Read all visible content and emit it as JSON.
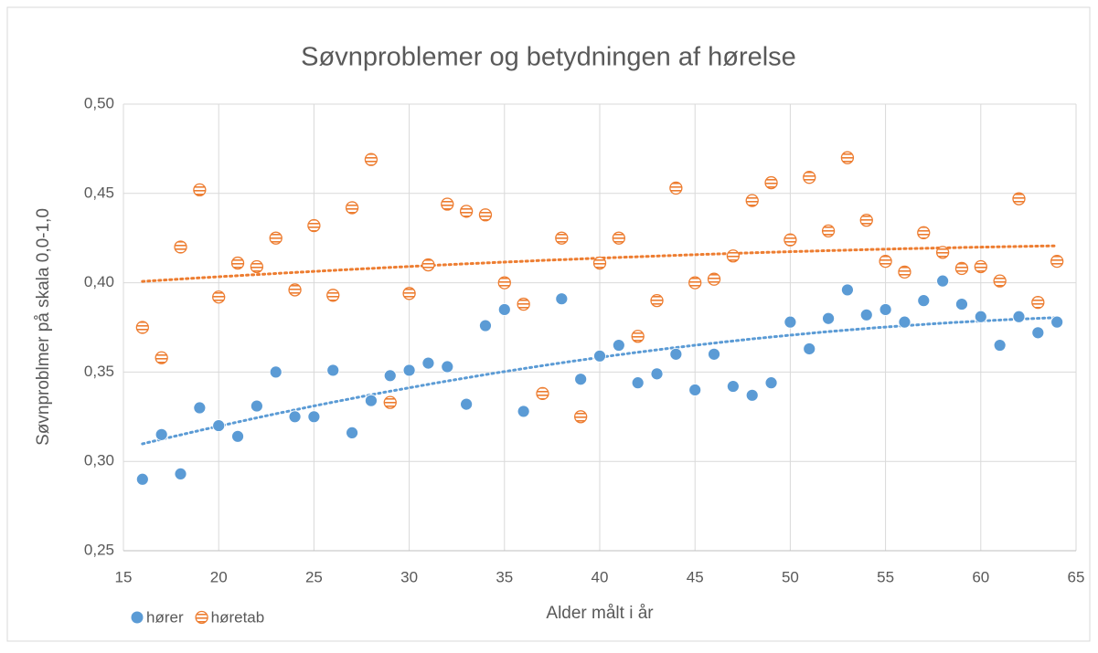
{
  "chart_data": {
    "type": "scatter",
    "title": "Søvnproblemer og betydningen af hørelse",
    "x_label": "Alder målt i år",
    "y_label": "Søvnproblmer på skala 0,0-1,0",
    "x": [
      16,
      17,
      18,
      19,
      20,
      21,
      22,
      23,
      24,
      25,
      26,
      27,
      28,
      29,
      30,
      31,
      32,
      33,
      34,
      35,
      36,
      37,
      38,
      39,
      40,
      41,
      42,
      43,
      44,
      45,
      46,
      47,
      48,
      49,
      50,
      51,
      52,
      53,
      54,
      55,
      56,
      57,
      58,
      59,
      60,
      61,
      62,
      63,
      64
    ],
    "series": [
      {
        "name": "hører",
        "color": "#5b9bd5",
        "trendline": "polynomial",
        "values": [
          0.29,
          0.315,
          0.293,
          0.33,
          0.32,
          0.314,
          0.331,
          0.35,
          0.325,
          0.325,
          0.351,
          0.316,
          0.334,
          0.348,
          0.351,
          0.355,
          0.353,
          0.332,
          0.376,
          0.385,
          0.328,
          null,
          0.391,
          0.346,
          0.359,
          0.365,
          0.344,
          0.349,
          0.36,
          0.34,
          0.36,
          0.342,
          0.337,
          0.344,
          0.378,
          0.363,
          0.38,
          0.396,
          0.382,
          0.385,
          0.378,
          0.39,
          0.401,
          0.388,
          0.381,
          0.365,
          0.381,
          0.372,
          0.378
        ]
      },
      {
        "name": "høretab",
        "color": "#ed7d31",
        "trendline": "polynomial",
        "values": [
          0.375,
          0.358,
          0.42,
          0.452,
          0.392,
          0.411,
          0.409,
          0.425,
          0.396,
          0.432,
          0.393,
          0.442,
          0.469,
          0.333,
          0.394,
          0.41,
          0.444,
          0.44,
          0.438,
          0.4,
          0.388,
          0.338,
          0.425,
          0.325,
          0.411,
          0.425,
          0.37,
          0.39,
          0.453,
          0.4,
          0.402,
          0.415,
          0.446,
          0.456,
          0.424,
          0.459,
          0.429,
          0.47,
          0.435,
          0.412,
          0.406,
          0.428,
          0.417,
          0.408,
          0.409,
          0.401,
          0.447,
          0.389,
          0.412
        ]
      }
    ],
    "xlim": [
      15,
      65
    ],
    "xticks": [
      15,
      20,
      25,
      30,
      35,
      40,
      45,
      50,
      55,
      60,
      65
    ],
    "ylim": [
      0.25,
      0.5
    ],
    "yticks": [
      {
        "value": 0.25,
        "label": "0,25"
      },
      {
        "value": 0.3,
        "label": "0,30"
      },
      {
        "value": 0.35,
        "label": "0,35"
      },
      {
        "value": 0.4,
        "label": "0,40"
      },
      {
        "value": 0.45,
        "label": "0,45"
      },
      {
        "value": 0.5,
        "label": "0,50"
      }
    ],
    "grid": true,
    "legend": "bottom-left"
  }
}
